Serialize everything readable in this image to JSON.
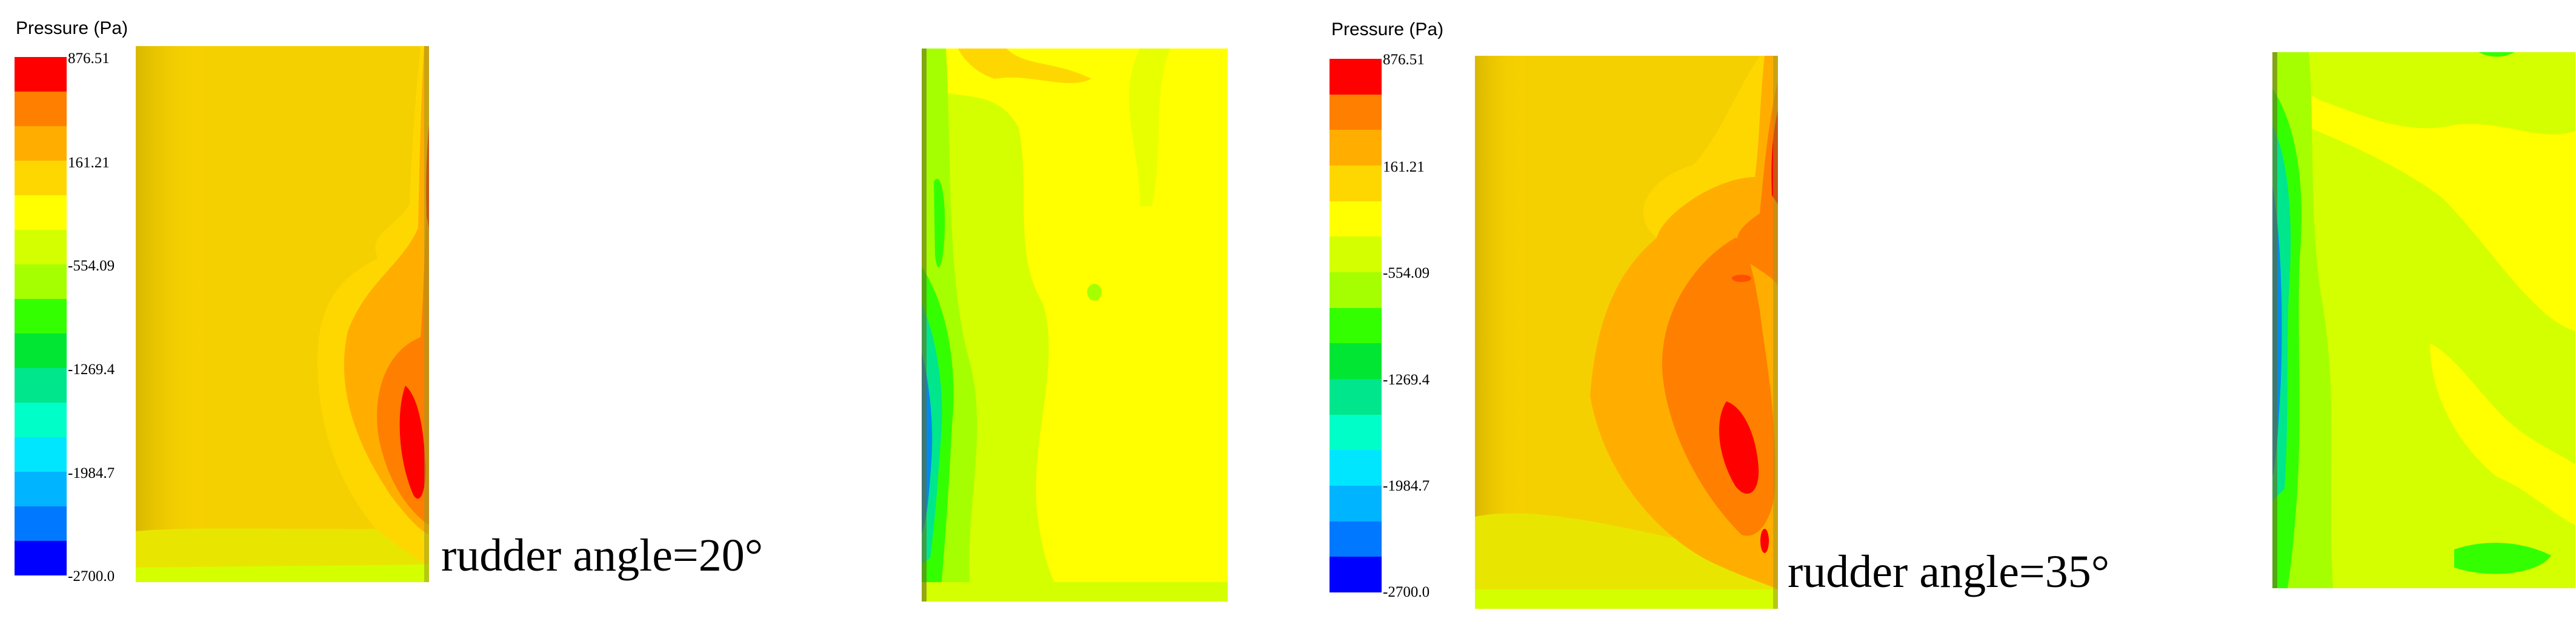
{
  "legend": {
    "title": "Pressure (Pa)",
    "ticks": [
      "876.51",
      "161.21",
      "-554.09",
      "-1269.4",
      "-1984.7",
      "-2700.0"
    ],
    "colors": [
      "#ff0000",
      "#ff7f00",
      "#ffae00",
      "#ffd700",
      "#ffff00",
      "#d4ff00",
      "#a6ff00",
      "#33ff00",
      "#00e632",
      "#00e68c",
      "#00ffc8",
      "#00e6ff",
      "#00b4ff",
      "#0078ff",
      "#0000ff"
    ]
  },
  "panels": [
    {
      "caption": "rudder angle=20°"
    },
    {
      "caption": "rudder angle=35°"
    }
  ]
}
